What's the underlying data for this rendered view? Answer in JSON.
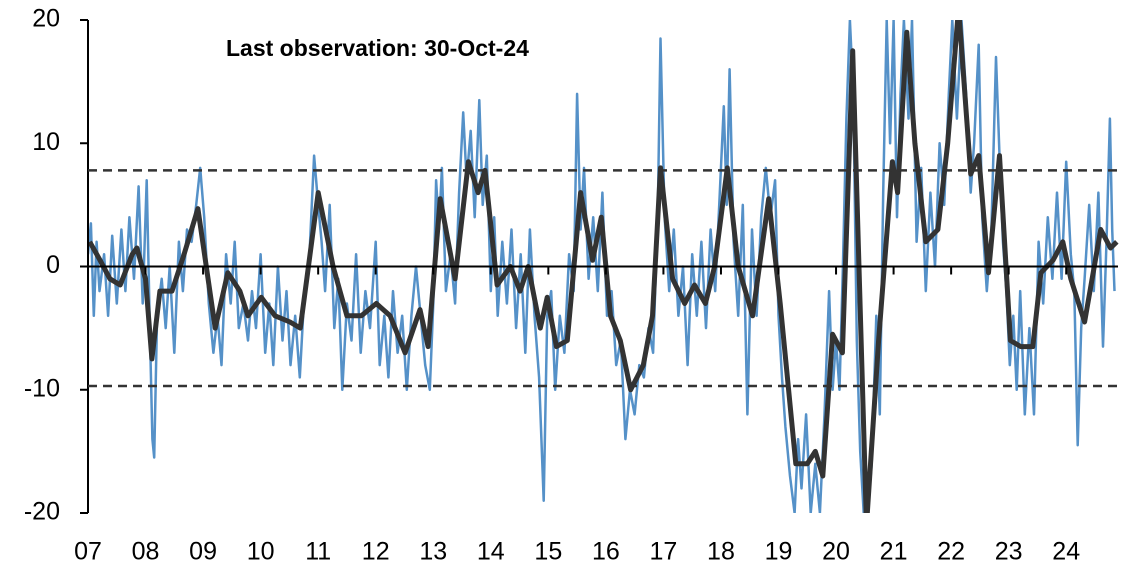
{
  "chart_data": {
    "type": "line",
    "annotation": "Last observation: 30-Oct-24",
    "xlim": [
      2007,
      2024.9
    ],
    "ylim": [
      -20,
      20
    ],
    "yticks": [
      -20,
      -10,
      0,
      10,
      20
    ],
    "xticks": [
      {
        "value": 2007,
        "label": "07"
      },
      {
        "value": 2008,
        "label": "08"
      },
      {
        "value": 2009,
        "label": "09"
      },
      {
        "value": 2010,
        "label": "10"
      },
      {
        "value": 2011,
        "label": "11"
      },
      {
        "value": 2012,
        "label": "12"
      },
      {
        "value": 2013,
        "label": "13"
      },
      {
        "value": 2014,
        "label": "14"
      },
      {
        "value": 2015,
        "label": "15"
      },
      {
        "value": 2016,
        "label": "16"
      },
      {
        "value": 2017,
        "label": "17"
      },
      {
        "value": 2018,
        "label": "18"
      },
      {
        "value": 2019,
        "label": "19"
      },
      {
        "value": 2020,
        "label": "20"
      },
      {
        "value": 2021,
        "label": "21"
      },
      {
        "value": 2022,
        "label": "22"
      },
      {
        "value": 2023,
        "label": "23"
      },
      {
        "value": 2024,
        "label": "24"
      }
    ],
    "reference_lines": [
      7.8,
      -9.7
    ],
    "reference_color": "#333333",
    "series": [
      {
        "color": "#5591c8",
        "x": [
          2007.0,
          2007.05,
          2007.1,
          2007.15,
          2007.2,
          2007.28,
          2007.35,
          2007.42,
          2007.5,
          2007.58,
          2007.65,
          2007.72,
          2007.8,
          2007.88,
          2007.95,
          2008.02,
          2008.08,
          2008.12,
          2008.15,
          2008.2,
          2008.28,
          2008.35,
          2008.42,
          2008.5,
          2008.58,
          2008.65,
          2008.72,
          2008.8,
          2008.88,
          2008.95,
          2009.02,
          2009.1,
          2009.18,
          2009.25,
          2009.32,
          2009.4,
          2009.48,
          2009.55,
          2009.62,
          2009.7,
          2009.78,
          2009.85,
          2009.92,
          2010.0,
          2010.08,
          2010.15,
          2010.22,
          2010.3,
          2010.38,
          2010.45,
          2010.52,
          2010.6,
          2010.68,
          2010.75,
          2010.85,
          2010.93,
          2011.0,
          2011.06,
          2011.12,
          2011.2,
          2011.28,
          2011.35,
          2011.42,
          2011.5,
          2011.58,
          2011.66,
          2011.74,
          2011.82,
          2011.9,
          2012.0,
          2012.07,
          2012.15,
          2012.22,
          2012.3,
          2012.38,
          2012.46,
          2012.54,
          2012.62,
          2012.7,
          2012.78,
          2012.86,
          2012.94,
          2013.0,
          2013.05,
          2013.1,
          2013.15,
          2013.22,
          2013.3,
          2013.38,
          2013.45,
          2013.52,
          2013.58,
          2013.65,
          2013.72,
          2013.8,
          2013.86,
          2013.93,
          2014.0,
          2014.06,
          2014.12,
          2014.2,
          2014.28,
          2014.36,
          2014.44,
          2014.52,
          2014.6,
          2014.68,
          2014.76,
          2014.84,
          2014.92,
          2014.98,
          2015.05,
          2015.12,
          2015.2,
          2015.28,
          2015.36,
          2015.44,
          2015.5,
          2015.56,
          2015.62,
          2015.7,
          2015.78,
          2015.86,
          2015.94,
          2016.02,
          2016.1,
          2016.18,
          2016.26,
          2016.34,
          2016.42,
          2016.5,
          2016.58,
          2016.66,
          2016.74,
          2016.82,
          2016.9,
          2016.95,
          2017.02,
          2017.1,
          2017.18,
          2017.26,
          2017.34,
          2017.42,
          2017.5,
          2017.58,
          2017.66,
          2017.74,
          2017.82,
          2017.9,
          2017.98,
          2018.05,
          2018.1,
          2018.15,
          2018.22,
          2018.3,
          2018.38,
          2018.46,
          2018.54,
          2018.62,
          2018.7,
          2018.78,
          2018.86,
          2018.94,
          2019.0,
          2019.06,
          2019.12,
          2019.2,
          2019.28,
          2019.34,
          2019.4,
          2019.48,
          2019.56,
          2019.64,
          2019.72,
          2019.8,
          2019.88,
          2019.94,
          2020.0,
          2020.06,
          2020.12,
          2020.18,
          2020.24,
          2020.3,
          2020.36,
          2020.42,
          2020.48,
          2020.55,
          2020.62,
          2020.7,
          2020.76,
          2020.82,
          2020.88,
          2020.94,
          2021.0,
          2021.06,
          2021.12,
          2021.18,
          2021.26,
          2021.32,
          2021.4,
          2021.48,
          2021.56,
          2021.64,
          2021.72,
          2021.8,
          2021.88,
          2021.96,
          2022.02,
          2022.1,
          2022.18,
          2022.26,
          2022.34,
          2022.4,
          2022.48,
          2022.54,
          2022.62,
          2022.7,
          2022.78,
          2022.84,
          2022.9,
          2022.96,
          2023.02,
          2023.08,
          2023.14,
          2023.2,
          2023.28,
          2023.36,
          2023.44,
          2023.52,
          2023.6,
          2023.68,
          2023.76,
          2023.84,
          2023.92,
          2024.0,
          2024.08,
          2024.14,
          2024.2,
          2024.26,
          2024.32,
          2024.4,
          2024.48,
          2024.56,
          2024.64,
          2024.7,
          2024.76,
          2024.8,
          2024.84
        ],
        "values": [
          1,
          3.5,
          -4,
          2,
          -2,
          1,
          -4,
          2.5,
          -3,
          3,
          -2,
          4,
          -1,
          6.5,
          -3,
          7,
          -6,
          -14,
          -15.5,
          -4,
          -1,
          -5,
          0,
          -7,
          2,
          -2,
          3,
          2,
          5,
          8,
          4,
          -3,
          -7,
          -4,
          -8,
          1,
          -3,
          2,
          -5,
          -3,
          -6,
          -2,
          -5,
          1,
          -7,
          -3,
          -8,
          0,
          -6,
          -2,
          -8,
          -4,
          -9,
          -3,
          1,
          9,
          5,
          2,
          -2,
          5,
          -5,
          -1,
          -10,
          -3,
          -6,
          1,
          -7,
          -2,
          -5,
          2,
          -8,
          -4,
          -9,
          -2,
          -7,
          -4,
          -10,
          -4,
          0,
          -4,
          -8,
          -10,
          -3,
          7,
          3,
          8,
          -2,
          1,
          -3,
          6,
          12.5,
          7,
          11,
          4,
          13.5,
          5,
          9,
          -2,
          4,
          -4,
          2,
          -3,
          3,
          -5,
          1,
          -7,
          3,
          -4,
          -9,
          -19,
          -4,
          -2,
          -10,
          -4,
          -7,
          1,
          -2,
          14,
          3,
          8,
          -1,
          4,
          -2,
          6,
          -4,
          -2,
          -8,
          -6,
          -14,
          -10,
          -12,
          -8,
          -9,
          -5,
          -7,
          4,
          18.5,
          4,
          -2,
          3,
          -4,
          0,
          -8,
          1,
          -4,
          2,
          -5,
          3,
          -2,
          6,
          13,
          5,
          16,
          2,
          -4,
          5,
          -12,
          3,
          -4,
          4,
          8,
          4,
          7,
          -4,
          -9,
          -13,
          -17,
          -20,
          -14,
          -18,
          -12,
          -20,
          -16,
          -20,
          -12,
          -2,
          -10,
          -6,
          -10,
          0,
          12,
          20,
          14,
          -6,
          -15,
          -20,
          -20,
          -16,
          -4,
          -12,
          6,
          20,
          10,
          20,
          4,
          14,
          20,
          12,
          20,
          2,
          8,
          -2,
          6,
          0,
          10,
          5,
          14,
          20,
          12,
          20,
          14,
          6,
          10,
          18,
          4,
          -2,
          3,
          17,
          9,
          2,
          -2,
          -8,
          -4,
          -10,
          -2,
          -12,
          -5,
          -12,
          2,
          -3,
          4,
          -1,
          6,
          -1,
          8.5,
          1,
          -2,
          -14.5,
          -5,
          -1,
          5,
          -2,
          6,
          -6.5,
          2,
          12,
          3,
          -2
        ]
      },
      {
        "color": "#333333",
        "x": [
          2007.03,
          2007.21,
          2007.38,
          2007.56,
          2007.77,
          2007.85,
          2008.0,
          2008.11,
          2008.25,
          2008.46,
          2008.67,
          2008.91,
          2009.21,
          2009.43,
          2009.64,
          2009.78,
          2010.01,
          2010.25,
          2010.51,
          2010.69,
          2011.0,
          2011.26,
          2011.5,
          2011.75,
          2012.01,
          2012.25,
          2012.51,
          2012.77,
          2012.91,
          2013.12,
          2013.38,
          2013.61,
          2013.78,
          2013.9,
          2014.11,
          2014.34,
          2014.51,
          2014.65,
          2014.86,
          2014.98,
          2015.14,
          2015.33,
          2015.56,
          2015.77,
          2015.92,
          2016.08,
          2016.25,
          2016.43,
          2016.65,
          2016.81,
          2016.95,
          2017.16,
          2017.37,
          2017.54,
          2017.73,
          2017.89,
          2018.11,
          2018.3,
          2018.55,
          2018.83,
          2019.03,
          2019.3,
          2019.5,
          2019.64,
          2019.77,
          2019.94,
          2020.11,
          2020.29,
          2020.53,
          2020.74,
          2020.98,
          2021.07,
          2021.23,
          2021.37,
          2021.56,
          2021.77,
          2021.94,
          2022.13,
          2022.34,
          2022.48,
          2022.65,
          2022.84,
          2023.03,
          2023.21,
          2023.42,
          2023.56,
          2023.77,
          2023.94,
          2024.08,
          2024.32,
          2024.6,
          2024.77,
          2024.88
        ],
        "values": [
          2,
          0.5,
          -1,
          -1.5,
          1,
          1.5,
          -1,
          -7.5,
          -2,
          -2,
          1,
          4.7,
          -5,
          -0.5,
          -2,
          -4,
          -2.5,
          -4,
          -4.5,
          -5,
          6,
          0,
          -4,
          -4,
          -3,
          -4,
          -7,
          -3.5,
          -6.5,
          5.5,
          -1,
          8.5,
          6,
          7.8,
          -1.5,
          0,
          -2,
          0,
          -5,
          -2.5,
          -6.5,
          -6,
          6,
          0.5,
          4,
          -4,
          -6,
          -10,
          -8,
          -4,
          8,
          -1,
          -3,
          -1.5,
          -3,
          0,
          8,
          0,
          -4,
          5.5,
          -3,
          -16,
          -16,
          -15,
          -17,
          -5.5,
          -7,
          17.5,
          -21,
          -6,
          8.5,
          6,
          19,
          10,
          2,
          3,
          10,
          21,
          7.5,
          9,
          -0.5,
          9,
          -6,
          -6.5,
          -6.5,
          -0.5,
          0.5,
          2,
          -1,
          -4.5,
          3,
          1.5,
          2
        ]
      }
    ]
  }
}
